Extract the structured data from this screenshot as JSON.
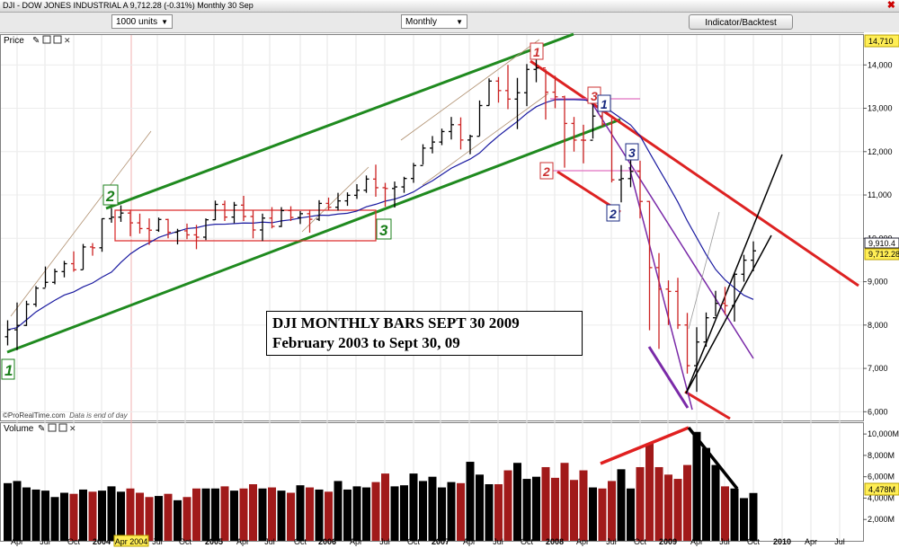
{
  "window": {
    "title": "DJI - DOW JONES INDUSTRIAL A    9,712.28 (-0.31%)    Monthly  30 Sep",
    "close_glyph": "✖"
  },
  "toolbar": {
    "units": "1000 units",
    "period": "Monthly",
    "indicator_button": "Indicator/Backtest"
  },
  "price_panel": {
    "label": "Price",
    "top_right_value": "14,710",
    "last_price_tag": "9,712.28",
    "ma_tag": "9,910.4",
    "credit": "©ProRealTime.com",
    "credit_note": "Data is end of day"
  },
  "volume_panel": {
    "label": "Volume",
    "last_value_tag": "4,478M"
  },
  "x_axis_labels": [
    {
      "text": "Apr",
      "x": 19
    },
    {
      "text": "Jul",
      "x": 50
    },
    {
      "text": "Oct",
      "x": 82
    },
    {
      "text": "2004",
      "x": 113
    },
    {
      "text": "Apr 2004",
      "x": 146
    },
    {
      "text": "Jul",
      "x": 175
    },
    {
      "text": "Oct",
      "x": 206
    },
    {
      "text": "2005",
      "x": 238
    },
    {
      "text": "Apr",
      "x": 270
    },
    {
      "text": "Jul",
      "x": 300
    },
    {
      "text": "Oct",
      "x": 334
    },
    {
      "text": "2006",
      "x": 364
    },
    {
      "text": "Apr",
      "x": 396
    },
    {
      "text": "Jul",
      "x": 428
    },
    {
      "text": "Oct",
      "x": 460
    },
    {
      "text": "2007",
      "x": 490
    },
    {
      "text": "Apr",
      "x": 522
    },
    {
      "text": "Jul",
      "x": 554
    },
    {
      "text": "Oct",
      "x": 586
    },
    {
      "text": "2008",
      "x": 617
    },
    {
      "text": "Apr",
      "x": 648
    },
    {
      "text": "Jul",
      "x": 680
    },
    {
      "text": "Oct",
      "x": 712
    },
    {
      "text": "2009",
      "x": 743
    },
    {
      "text": "Apr",
      "x": 775
    },
    {
      "text": "Jul",
      "x": 806
    },
    {
      "text": "Oct",
      "x": 838
    },
    {
      "text": "2010",
      "x": 870
    },
    {
      "text": "Apr",
      "x": 902
    },
    {
      "text": "Jul",
      "x": 934
    }
  ],
  "annotation": {
    "line1": "DJI MONTHLY BARS SEPT 30 2009",
    "line2": "February 2003 to Sept 30, 09"
  },
  "wave_labels": [
    {
      "text": "1",
      "color": "#1a7f1a"
    },
    {
      "text": "2",
      "color": "#1a7f1a"
    },
    {
      "text": "3",
      "color": "#1a7f1a"
    },
    {
      "text": "1",
      "color": "#cc3333"
    },
    {
      "text": "2",
      "color": "#cc3333"
    },
    {
      "text": "3",
      "color": "#cc3333"
    },
    {
      "text": "1",
      "color": "#1a2a80"
    },
    {
      "text": "2",
      "color": "#1a2a80"
    },
    {
      "text": "3",
      "color": "#1a2a80"
    }
  ],
  "chart_data": {
    "type": "bar",
    "title": "DJI MONTHLY BARS SEPT 30 2009",
    "subtitle": "February 2003 to Sept 30, 09",
    "ylabel": "",
    "price_axis": {
      "ylim": [
        5800,
        14710
      ],
      "ticks": [
        6000,
        7000,
        8000,
        9000,
        10000,
        11000,
        12000,
        13000,
        14000
      ],
      "tick_labels": [
        "6,000",
        "7,000",
        "8,000",
        "9,000",
        "10,000",
        "11,000",
        "12,000",
        "13,000",
        "14,000"
      ]
    },
    "volume_axis": {
      "ylim": [
        0,
        10600
      ],
      "ticks": [
        2000,
        4000,
        6000,
        8000,
        10000
      ],
      "tick_labels": [
        "2,000M",
        "4,000M",
        "6,000M",
        "8,000M",
        "10,000M"
      ]
    },
    "months": [
      "2003-02",
      "2003-03",
      "2003-04",
      "2003-05",
      "2003-06",
      "2003-07",
      "2003-08",
      "2003-09",
      "2003-10",
      "2003-11",
      "2003-12",
      "2004-01",
      "2004-02",
      "2004-03",
      "2004-04",
      "2004-05",
      "2004-06",
      "2004-07",
      "2004-08",
      "2004-09",
      "2004-10",
      "2004-11",
      "2004-12",
      "2005-01",
      "2005-02",
      "2005-03",
      "2005-04",
      "2005-05",
      "2005-06",
      "2005-07",
      "2005-08",
      "2005-09",
      "2005-10",
      "2005-11",
      "2005-12",
      "2006-01",
      "2006-02",
      "2006-03",
      "2006-04",
      "2006-05",
      "2006-06",
      "2006-07",
      "2006-08",
      "2006-09",
      "2006-10",
      "2006-11",
      "2006-12",
      "2007-01",
      "2007-02",
      "2007-03",
      "2007-04",
      "2007-05",
      "2007-06",
      "2007-07",
      "2007-08",
      "2007-09",
      "2007-10",
      "2007-11",
      "2007-12",
      "2008-01",
      "2008-02",
      "2008-03",
      "2008-04",
      "2008-05",
      "2008-06",
      "2008-07",
      "2008-08",
      "2008-09",
      "2008-10",
      "2008-11",
      "2008-12",
      "2009-01",
      "2009-02",
      "2009-03",
      "2009-04",
      "2009-05",
      "2009-06",
      "2009-07",
      "2009-08",
      "2009-09"
    ],
    "close": [
      7891,
      7992,
      8480,
      8850,
      8985,
      9233,
      9415,
      9275,
      9801,
      9782,
      10453,
      10488,
      10583,
      10357,
      10225,
      10188,
      10435,
      10140,
      10173,
      10080,
      10027,
      10428,
      10783,
      10490,
      10766,
      10504,
      10193,
      10467,
      10275,
      10640,
      10481,
      10568,
      10440,
      10806,
      10717,
      10864,
      10993,
      11109,
      11367,
      11168,
      11150,
      11186,
      11381,
      11679,
      12081,
      12221,
      12463,
      12621,
      12268,
      12354,
      13063,
      13627,
      13408,
      13212,
      13358,
      13896,
      13930,
      13372,
      13264,
      12650,
      12266,
      12263,
      12820,
      12638,
      11350,
      11378,
      11544,
      10851,
      9325,
      8829,
      8776,
      8001,
      7063,
      7609,
      8168,
      8500,
      8447,
      9172,
      9496,
      9712
    ],
    "high": [
      8110,
      8520,
      8560,
      8900,
      9350,
      9300,
      9480,
      9700,
      9870,
      9890,
      10460,
      10700,
      10760,
      10660,
      10570,
      10460,
      10480,
      10450,
      10220,
      10340,
      10310,
      10460,
      10870,
      10870,
      10840,
      10980,
      10640,
      10570,
      10720,
      10720,
      10740,
      10630,
      10660,
      10880,
      10940,
      11050,
      11060,
      11250,
      11450,
      11700,
      11280,
      11310,
      11420,
      11740,
      12170,
      12360,
      12530,
      12800,
      12790,
      12390,
      13180,
      13690,
      13720,
      14000,
      13700,
      14020,
      14200,
      13900,
      13750,
      13290,
      12800,
      12620,
      13140,
      13160,
      12770,
      11690,
      11810,
      11790,
      10860,
      9660,
      9030,
      9090,
      8280,
      7950,
      8290,
      8790,
      8880,
      9200,
      9620,
      9930
    ],
    "low": [
      7530,
      7420,
      7980,
      8420,
      8870,
      8940,
      9100,
      9230,
      9280,
      9600,
      9690,
      10360,
      10380,
      10050,
      10110,
      9850,
      10150,
      10000,
      9860,
      9980,
      9750,
      9960,
      10420,
      10400,
      10350,
      10400,
      10000,
      9940,
      10230,
      10260,
      10400,
      10330,
      10130,
      10400,
      10650,
      10640,
      10750,
      10910,
      11050,
      10960,
      10730,
      10710,
      11050,
      11280,
      11700,
      11960,
      12150,
      12280,
      12050,
      11940,
      12360,
      13060,
      13130,
      12980,
      12520,
      13050,
      13600,
      12740,
      13000,
      11630,
      12000,
      11730,
      12300,
      12580,
      11290,
      10830,
      11180,
      10460,
      7880,
      7450,
      8000,
      7910,
      6880,
      6460,
      7500,
      8200,
      8240,
      8080,
      9000,
      9240
    ],
    "volume": [
      5400,
      5600,
      5000,
      4800,
      4700,
      4100,
      4500,
      4400,
      4800,
      4600,
      4700,
      5100,
      4600,
      4900,
      4500,
      4100,
      4200,
      4400,
      3800,
      4100,
      4900,
      4900,
      4900,
      5100,
      4700,
      4900,
      5300,
      4900,
      5000,
      4700,
      4500,
      5200,
      5000,
      4800,
      4600,
      5600,
      4800,
      5100,
      5000,
      5500,
      6300,
      5100,
      5200,
      6300,
      5600,
      6000,
      5000,
      5500,
      5400,
      7400,
      6200,
      5300,
      5300,
      6600,
      7300,
      5800,
      6000,
      6900,
      5900,
      7300,
      5700,
      6600,
      5000,
      4900,
      5600,
      6700,
      4900,
      6900,
      9100,
      6900,
      6200,
      5800,
      7100,
      10200,
      8700,
      7100,
      5100,
      4900,
      4000,
      4478
    ]
  }
}
